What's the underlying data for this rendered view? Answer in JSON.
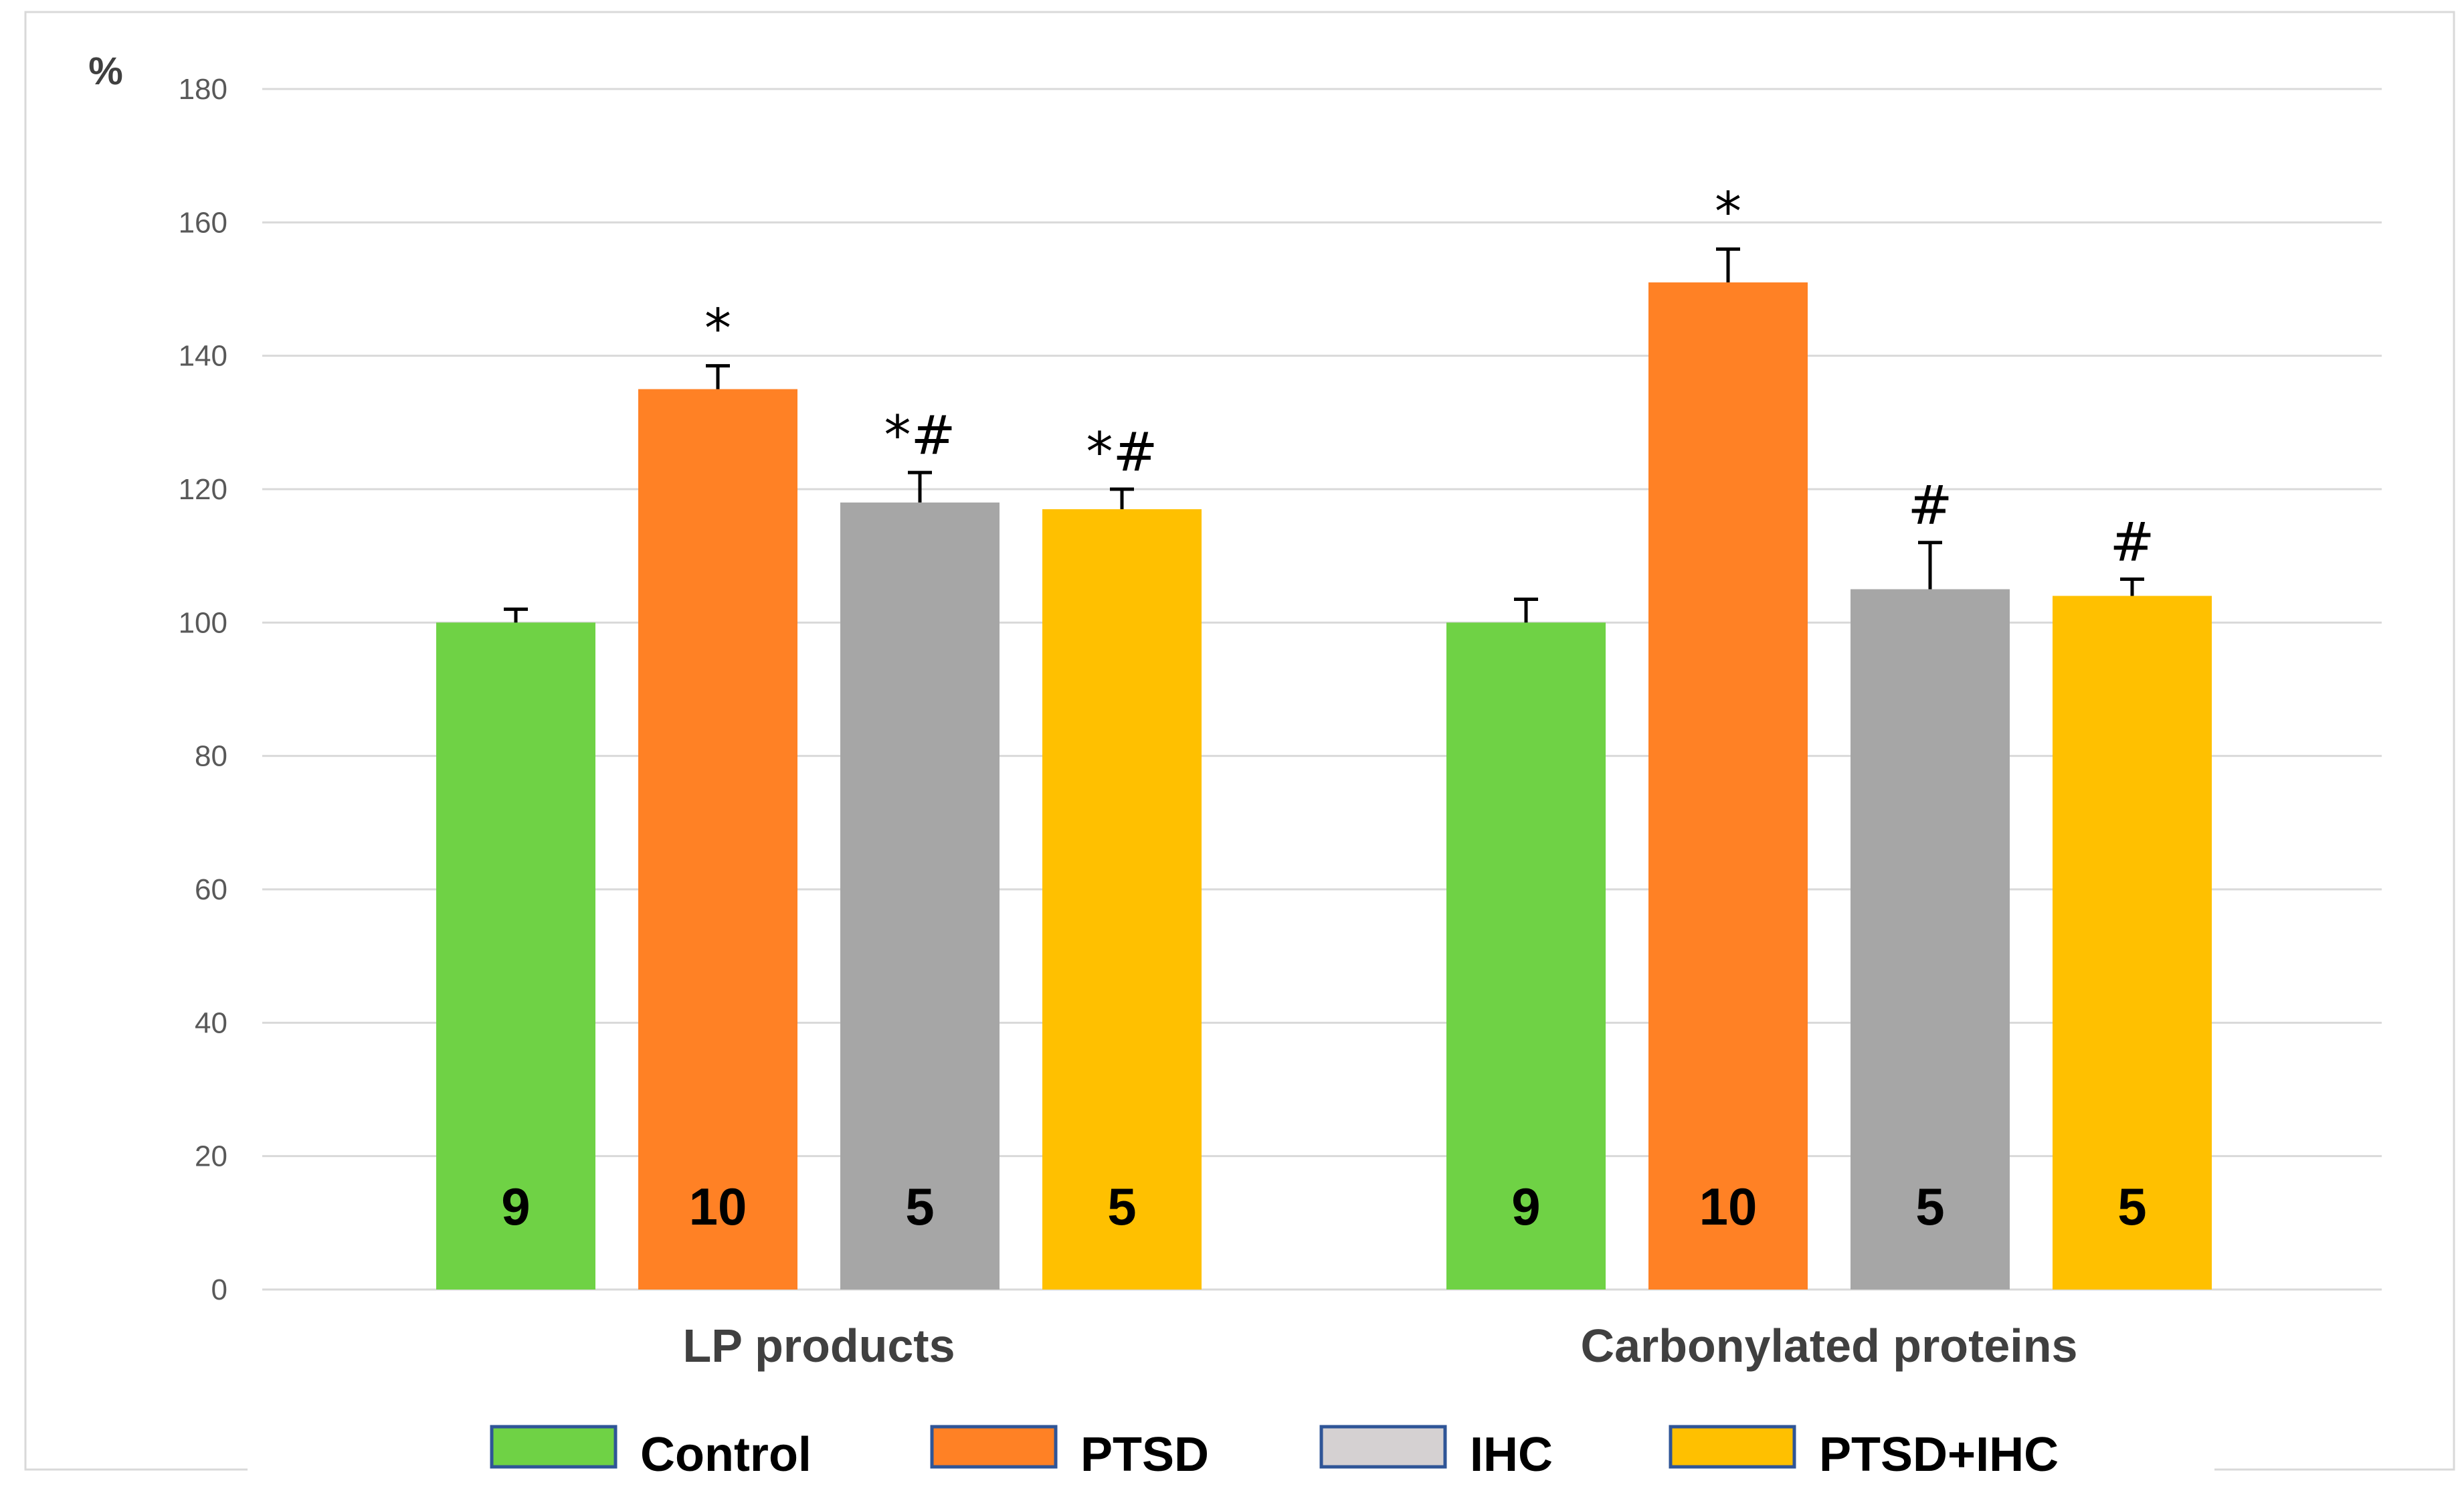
{
  "chart_data": {
    "type": "bar",
    "title": "",
    "xlabel": "",
    "ylabel": "%",
    "ylim": [
      0,
      180
    ],
    "yticks": [
      0,
      20,
      40,
      60,
      80,
      100,
      120,
      140,
      160,
      180
    ],
    "grid": true,
    "legend_position": "bottom",
    "categories": [
      "LP products",
      "Carbonylated proteins"
    ],
    "series": [
      {
        "name": "Control",
        "color": "#6FD245",
        "legend_color": "#6FD245",
        "values": [
          100,
          100
        ],
        "errors": [
          2,
          3.5
        ],
        "n": [
          "9",
          "9"
        ],
        "significance": [
          "",
          ""
        ]
      },
      {
        "name": "PTSD",
        "color": "#FF8125",
        "legend_color": "#FF8125",
        "values": [
          135,
          151
        ],
        "errors": [
          3.5,
          5
        ],
        "n": [
          "10",
          "10"
        ],
        "significance": [
          "*",
          "*"
        ]
      },
      {
        "name": "IHC",
        "color": "#A6A6A6",
        "legend_color": "#D5D1D2",
        "values": [
          118,
          105
        ],
        "errors": [
          4.5,
          7
        ],
        "n": [
          "5",
          "5"
        ],
        "significance": [
          "*#",
          "#"
        ]
      },
      {
        "name": "PTSD+IHC",
        "color": "#FFC000",
        "legend_color": "#FFC000",
        "values": [
          117,
          104
        ],
        "errors": [
          3,
          2.5
        ],
        "n": [
          "5",
          "5"
        ],
        "significance": [
          "*#",
          "#"
        ]
      }
    ]
  }
}
